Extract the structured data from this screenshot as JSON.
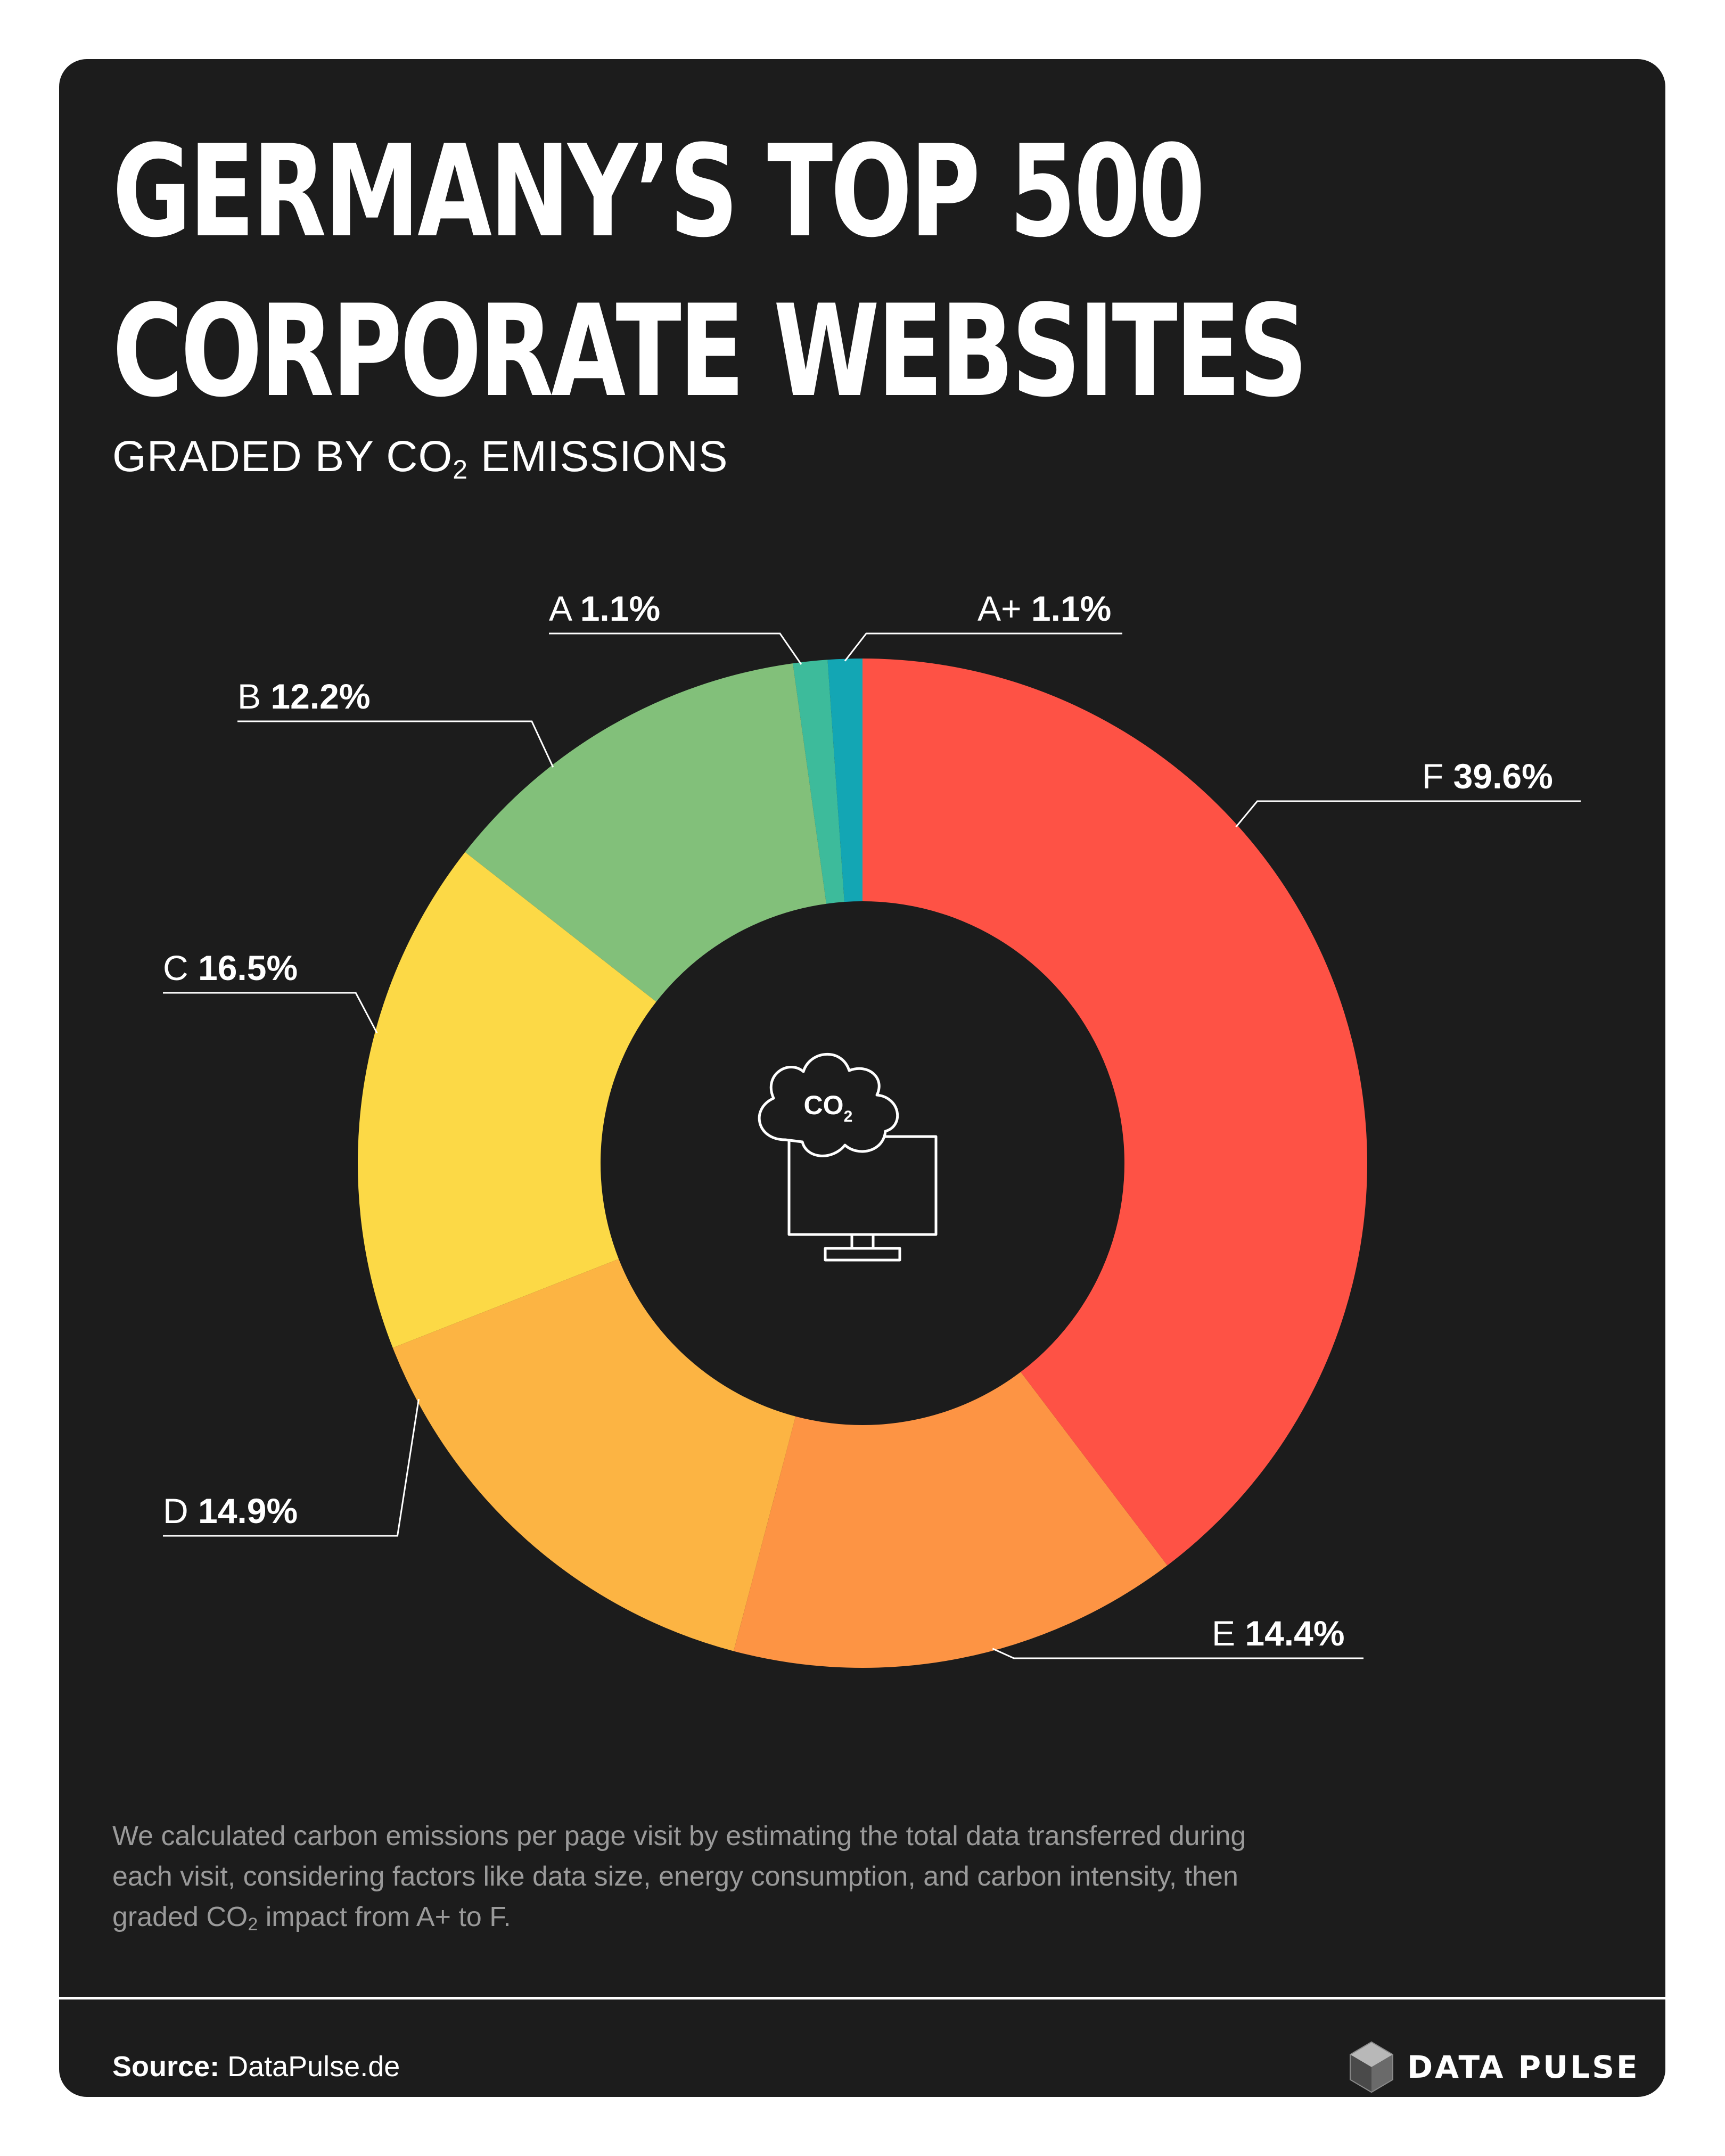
{
  "header": {
    "title_line1": "GERMANY’S TOP 500",
    "title_line2": "CORPORATE WEBSITES",
    "subtitle_pre": "GRADED BY CO",
    "subtitle_sub": "2",
    "subtitle_post": " EMISSIONS"
  },
  "center_icon": {
    "name": "co2-cloud-monitor-icon",
    "text": "CO",
    "sub": "2"
  },
  "chart_data": {
    "type": "pie",
    "donut": true,
    "title": "GERMANY’S TOP 500 CORPORATE WEBSITES",
    "subtitle": "GRADED BY CO2 EMISSIONS",
    "unit": "%",
    "slices": [
      {
        "label": "A+",
        "value": 1.1,
        "value_text": "1.1%",
        "color": "#13a6b4"
      },
      {
        "label": "A",
        "value": 1.1,
        "value_text": "1.1%",
        "color": "#3dbb9b"
      },
      {
        "label": "B",
        "value": 12.2,
        "value_text": "12.2%",
        "color": "#82c07a"
      },
      {
        "label": "C",
        "value": 16.5,
        "value_text": "16.5%",
        "color": "#fcd946"
      },
      {
        "label": "D",
        "value": 14.9,
        "value_text": "14.9%",
        "color": "#fcb443"
      },
      {
        "label": "E",
        "value": 14.4,
        "value_text": "14.4%",
        "color": "#fd9444"
      },
      {
        "label": "F",
        "value": 39.6,
        "value_text": "39.6%",
        "color": "#fe5245"
      }
    ],
    "order": "counterclockwise from top: A+, A, B, C, D, E; F clockwise from top"
  },
  "footnote": {
    "line_pre": "We calculated carbon emissions per page visit by estimating the total data transferred during each visit, considering factors like data size, energy consumption, and carbon intensity, then graded CO",
    "line_sub": "2",
    "line_post": " impact from A+ to F."
  },
  "footer": {
    "source_label": "Source:",
    "source_value": " DataPulse.de",
    "brand": "DATA PULSE"
  }
}
